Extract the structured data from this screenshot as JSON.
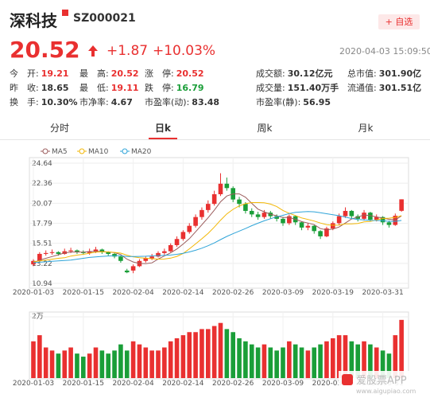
{
  "header": {
    "title": "深科技",
    "code": "SZ000021",
    "button": "+ 自选",
    "price": "20.52",
    "change": "+1.87",
    "change_pct": "+10.03%",
    "time": "2020-04-03 15:09:50"
  },
  "quote": {
    "rows": [
      [
        {
          "label": "今　开:",
          "value": "19.21",
          "color": "#e93030"
        },
        {
          "label": "最　高:",
          "value": "20.52",
          "color": "#e93030"
        },
        {
          "label": "涨　停:",
          "value": "20.52",
          "color": "#e93030"
        },
        {
          "label": "成交额:",
          "value": "30.12亿元"
        },
        {
          "label": "总市值:",
          "value": "301.90亿"
        }
      ],
      [
        {
          "label": "昨　收:",
          "value": "18.65"
        },
        {
          "label": "最　低:",
          "value": "19.11",
          "color": "#e93030"
        },
        {
          "label": "跌　停:",
          "value": "16.79",
          "color": "#1a9e38"
        },
        {
          "label": "成交量:",
          "value": "151.40万手"
        },
        {
          "label": "流通值:",
          "value": "301.51亿"
        }
      ],
      [
        {
          "label": "换　手:",
          "value": "10.30%"
        },
        {
          "label": "市净率:",
          "value": "4.67"
        },
        {
          "label": "市盈率(动):",
          "value": "83.48"
        },
        {
          "label": "市盈率(静):",
          "value": "56.95"
        }
      ]
    ]
  },
  "tabs": {
    "items": [
      "分时",
      "日k",
      "周k",
      "月k"
    ],
    "active": 1
  },
  "watermark": {
    "name": "爱股票APP",
    "url": "www.aigupiao.com"
  },
  "chart_data": [
    {
      "type": "candlestick",
      "up_color": "#e93030",
      "down_color": "#1a9e38",
      "grid": true,
      "categories": [
        "2020-01-03",
        null,
        null,
        null,
        null,
        null,
        null,
        null,
        "2020-01-15",
        null,
        null,
        null,
        null,
        null,
        null,
        null,
        "2020-02-04",
        null,
        null,
        null,
        null,
        null,
        null,
        null,
        "2020-02-14",
        null,
        null,
        null,
        null,
        null,
        null,
        null,
        "2020-02-26",
        null,
        null,
        null,
        null,
        null,
        null,
        null,
        "2020-03-09",
        null,
        null,
        null,
        null,
        null,
        null,
        null,
        "2020-03-19",
        null,
        null,
        null,
        null,
        null,
        null,
        null,
        "2020-03-31",
        null,
        null,
        null
      ],
      "open": [
        13.1,
        13.5,
        14.3,
        14.4,
        14.5,
        14.3,
        14.6,
        14.7,
        14.5,
        14.4,
        14.6,
        14.8,
        14.5,
        14.3,
        14.0,
        12.4,
        12.4,
        12.9,
        13.5,
        13.8,
        14.0,
        14.4,
        14.6,
        15.3,
        16.0,
        16.8,
        17.5,
        18.5,
        19.3,
        20.0,
        21.1,
        22.3,
        21.8,
        20.5,
        20.0,
        19.2,
        18.8,
        18.5,
        19.0,
        18.6,
        18.3,
        17.8,
        18.6,
        17.9,
        17.3,
        17.5,
        16.9,
        16.3,
        17.2,
        17.8,
        18.6,
        19.2,
        18.6,
        18.3,
        19.0,
        18.2,
        18.5,
        17.9,
        17.6,
        19.21
      ],
      "high": [
        13.7,
        14.5,
        14.7,
        14.8,
        14.6,
        14.9,
        15.0,
        14.8,
        14.7,
        14.9,
        15.1,
        14.9,
        14.6,
        14.4,
        14.1,
        12.6,
        13.1,
        13.7,
        14.0,
        14.3,
        14.6,
        14.9,
        15.5,
        16.3,
        17.0,
        17.8,
        18.8,
        19.6,
        20.4,
        21.5,
        23.5,
        23.0,
        22.0,
        20.8,
        20.2,
        19.5,
        19.1,
        19.3,
        19.2,
        18.8,
        18.5,
        18.8,
        18.7,
        18.0,
        17.8,
        17.6,
        17.0,
        17.4,
        18.0,
        18.9,
        19.6,
        19.3,
        18.8,
        19.3,
        19.1,
        18.8,
        18.6,
        18.1,
        18.9,
        20.52
      ],
      "low": [
        12.9,
        13.4,
        14.1,
        14.2,
        14.1,
        14.2,
        14.4,
        14.3,
        14.2,
        14.2,
        14.4,
        14.3,
        14.1,
        13.8,
        13.3,
        12.1,
        12.1,
        12.8,
        13.3,
        13.6,
        13.9,
        14.2,
        14.5,
        15.1,
        15.8,
        16.6,
        17.3,
        18.2,
        19.0,
        19.8,
        20.9,
        21.5,
        20.2,
        19.6,
        18.9,
        18.5,
        18.2,
        18.3,
        18.3,
        18.0,
        17.5,
        17.6,
        17.6,
        17.0,
        17.0,
        16.6,
        16.0,
        16.2,
        17.0,
        17.6,
        18.4,
        18.3,
        18.0,
        18.1,
        18.0,
        18.0,
        17.6,
        17.3,
        17.5,
        19.11
      ],
      "close": [
        13.5,
        14.3,
        14.4,
        14.5,
        14.3,
        14.6,
        14.7,
        14.5,
        14.4,
        14.6,
        14.8,
        14.5,
        14.3,
        14.0,
        13.5,
        12.2,
        12.9,
        13.5,
        13.8,
        14.0,
        14.4,
        14.6,
        15.3,
        16.0,
        16.8,
        17.5,
        18.5,
        19.3,
        20.0,
        21.1,
        22.3,
        21.8,
        20.5,
        20.0,
        19.2,
        18.8,
        18.5,
        19.0,
        18.6,
        18.3,
        17.8,
        18.6,
        17.9,
        17.3,
        17.5,
        16.9,
        16.3,
        17.2,
        17.8,
        18.6,
        19.2,
        18.6,
        18.3,
        19.0,
        18.2,
        18.5,
        17.9,
        17.6,
        18.65,
        20.52
      ],
      "series": [
        {
          "name": "MA5",
          "color": "#9b5c5c",
          "values": [
            13.3,
            13.6,
            13.8,
            14.0,
            14.2,
            14.42,
            14.5,
            14.52,
            14.5,
            14.56,
            14.6,
            14.56,
            14.52,
            14.44,
            14.22,
            13.7,
            13.38,
            13.22,
            13.18,
            13.28,
            13.72,
            14.06,
            14.42,
            14.86,
            15.42,
            16.04,
            16.82,
            17.62,
            18.42,
            19.28,
            20.24,
            20.9,
            21.14,
            21.14,
            20.76,
            20.06,
            19.4,
            19.1,
            18.82,
            18.64,
            18.44,
            18.46,
            18.24,
            17.98,
            17.82,
            17.64,
            17.18,
            17.04,
            17.14,
            17.36,
            17.82,
            18.28,
            18.5,
            18.74,
            18.66,
            18.52,
            18.38,
            18.24,
            18.17,
            18.63
          ]
        },
        {
          "name": "MA10",
          "color": "#f2b705",
          "values": [
            13.4,
            13.5,
            13.6,
            13.7,
            13.8,
            13.86,
            14.05,
            14.16,
            14.25,
            14.38,
            14.51,
            14.53,
            14.52,
            14.47,
            14.39,
            14.15,
            13.97,
            13.87,
            13.81,
            13.75,
            13.71,
            13.72,
            13.82,
            14.02,
            14.35,
            14.88,
            15.44,
            16.02,
            16.64,
            17.35,
            18.14,
            18.86,
            19.38,
            19.78,
            20.02,
            20.15,
            20.15,
            20.12,
            19.98,
            19.7,
            19.25,
            18.93,
            18.67,
            18.4,
            18.23,
            18.04,
            17.82,
            17.64,
            17.56,
            17.59,
            17.73,
            17.73,
            17.77,
            17.94,
            18.01,
            18.17,
            18.33,
            18.37,
            18.46,
            18.65
          ]
        },
        {
          "name": "MA20",
          "color": "#2fa4d8",
          "values": [
            13.3,
            13.35,
            13.4,
            13.45,
            13.5,
            13.55,
            13.6,
            13.7,
            13.8,
            13.9,
            13.96,
            14.02,
            14.06,
            14.09,
            14.1,
            14.01,
            14.01,
            14.02,
            14.03,
            14.07,
            14.11,
            14.13,
            14.17,
            14.25,
            14.37,
            14.52,
            14.71,
            14.95,
            15.23,
            15.55,
            15.93,
            16.29,
            16.6,
            16.9,
            17.19,
            17.52,
            17.8,
            18.07,
            18.31,
            18.53,
            18.7,
            18.9,
            19.03,
            19.09,
            19.13,
            19.1,
            18.99,
            18.88,
            18.77,
            18.65,
            18.49,
            18.33,
            18.22,
            18.17,
            18.12,
            18.11,
            18.08,
            18.01,
            18.01,
            18.12
          ]
        }
      ],
      "ylim": [
        10.94,
        24.64
      ],
      "yticks": [
        10.94,
        13.22,
        15.51,
        17.79,
        20.07,
        22.36,
        24.64
      ]
    },
    {
      "type": "volume",
      "grid": true,
      "values": [
        12000,
        14000,
        10000,
        9000,
        8000,
        9000,
        10000,
        8000,
        7000,
        8000,
        10000,
        9000,
        8000,
        9000,
        11000,
        9000,
        12000,
        11000,
        10000,
        9000,
        9000,
        10000,
        12000,
        13000,
        14000,
        15000,
        15000,
        16000,
        16000,
        17000,
        18000,
        16000,
        15000,
        13000,
        12000,
        11000,
        10000,
        11000,
        10000,
        9000,
        10000,
        12000,
        11000,
        10000,
        9000,
        10000,
        11000,
        12000,
        13000,
        14000,
        14000,
        12000,
        11000,
        12000,
        11000,
        10000,
        9000,
        8000,
        14000,
        19000
      ],
      "ylim": [
        0,
        20000
      ],
      "yticks": [
        {
          "value": 20000,
          "label": "2万"
        }
      ]
    }
  ]
}
